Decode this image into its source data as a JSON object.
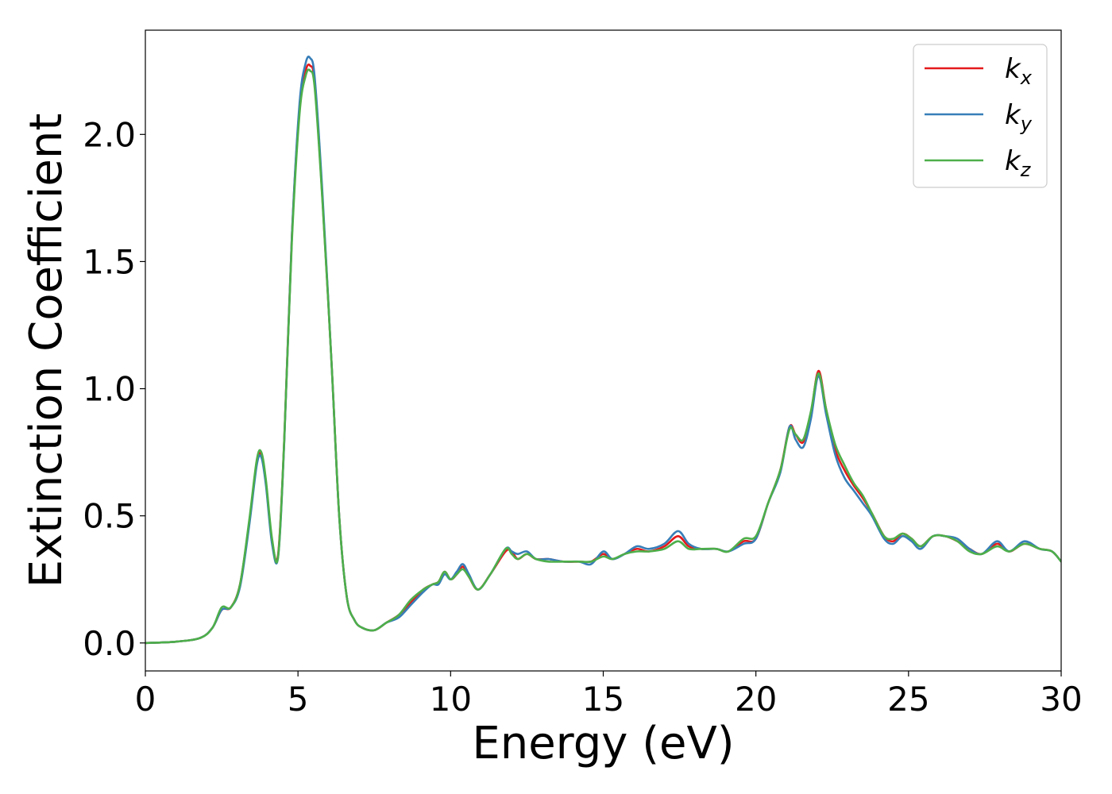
{
  "chart_data": {
    "type": "line",
    "title": "",
    "xlabel": "Energy (eV)",
    "ylabel": "Extinction Coefficient",
    "xlim": [
      0,
      30
    ],
    "ylim": [
      -0.11,
      2.41
    ],
    "xticks": [
      0,
      5,
      10,
      15,
      20,
      25,
      30
    ],
    "xtick_labels": [
      "0",
      "5",
      "10",
      "15",
      "20",
      "25",
      "30"
    ],
    "yticks": [
      0.0,
      0.5,
      1.0,
      1.5,
      2.0
    ],
    "ytick_labels": [
      "0.0",
      "0.5",
      "1.0",
      "1.5",
      "2.0"
    ],
    "grid": false,
    "legend_position": "top-right",
    "series": [
      {
        "name": "k_x",
        "legend_base": "k",
        "legend_sub": "x",
        "color": "#e41a1c",
        "x": [
          0,
          1,
          1.8,
          2.2,
          2.5,
          2.8,
          3.1,
          3.4,
          3.65,
          3.8,
          3.95,
          4.15,
          4.35,
          4.55,
          4.8,
          5.05,
          5.25,
          5.4,
          5.55,
          5.8,
          6.1,
          6.35,
          6.6,
          6.85,
          7.1,
          7.5,
          7.9,
          8.3,
          8.7,
          9.1,
          9.4,
          9.6,
          9.8,
          10.0,
          10.2,
          10.4,
          10.6,
          10.9,
          11.3,
          11.8,
          12.0,
          12.2,
          12.5,
          12.8,
          13.2,
          13.7,
          14.2,
          14.6,
          15.0,
          15.3,
          15.7,
          16.1,
          16.5,
          17.0,
          17.45,
          17.8,
          18.2,
          18.7,
          19.1,
          19.6,
          20.0,
          20.4,
          20.8,
          21.1,
          21.3,
          21.55,
          21.8,
          22.05,
          22.3,
          22.6,
          22.9,
          23.2,
          23.5,
          23.8,
          24.2,
          24.5,
          24.8,
          25.1,
          25.4,
          25.8,
          26.2,
          26.6,
          27.0,
          27.4,
          27.9,
          28.3,
          28.8,
          29.3,
          29.7,
          30.0
        ],
        "y": [
          0.0,
          0.005,
          0.02,
          0.06,
          0.13,
          0.14,
          0.23,
          0.47,
          0.71,
          0.74,
          0.63,
          0.4,
          0.35,
          0.8,
          1.6,
          2.1,
          2.25,
          2.27,
          2.2,
          1.75,
          1.1,
          0.5,
          0.18,
          0.09,
          0.06,
          0.05,
          0.08,
          0.11,
          0.16,
          0.21,
          0.23,
          0.24,
          0.28,
          0.25,
          0.27,
          0.3,
          0.26,
          0.21,
          0.27,
          0.36,
          0.36,
          0.33,
          0.35,
          0.33,
          0.33,
          0.32,
          0.32,
          0.32,
          0.35,
          0.33,
          0.35,
          0.37,
          0.36,
          0.38,
          0.42,
          0.38,
          0.37,
          0.37,
          0.36,
          0.4,
          0.41,
          0.55,
          0.68,
          0.85,
          0.82,
          0.79,
          0.9,
          1.07,
          0.92,
          0.76,
          0.68,
          0.62,
          0.57,
          0.51,
          0.42,
          0.4,
          0.43,
          0.41,
          0.38,
          0.42,
          0.42,
          0.4,
          0.37,
          0.35,
          0.39,
          0.36,
          0.39,
          0.37,
          0.36,
          0.32
        ]
      },
      {
        "name": "k_y",
        "legend_base": "k",
        "legend_sub": "y",
        "color": "#377eb8",
        "x": [
          0,
          1,
          1.8,
          2.2,
          2.5,
          2.8,
          3.1,
          3.4,
          3.65,
          3.8,
          3.95,
          4.15,
          4.35,
          4.55,
          4.8,
          5.05,
          5.25,
          5.4,
          5.55,
          5.8,
          6.1,
          6.35,
          6.6,
          6.85,
          7.1,
          7.5,
          7.9,
          8.3,
          8.7,
          9.1,
          9.4,
          9.6,
          9.8,
          10.0,
          10.2,
          10.4,
          10.6,
          10.9,
          11.3,
          11.8,
          12.0,
          12.2,
          12.5,
          12.8,
          13.2,
          13.7,
          14.2,
          14.6,
          15.0,
          15.3,
          15.7,
          16.1,
          16.5,
          17.0,
          17.45,
          17.8,
          18.2,
          18.7,
          19.1,
          19.6,
          20.0,
          20.4,
          20.8,
          21.1,
          21.3,
          21.55,
          21.8,
          22.05,
          22.3,
          22.6,
          22.9,
          23.2,
          23.5,
          23.8,
          24.2,
          24.5,
          24.8,
          25.1,
          25.4,
          25.8,
          26.2,
          26.6,
          27.0,
          27.4,
          27.9,
          28.3,
          28.8,
          29.3,
          29.7,
          30.0
        ],
        "y": [
          0.0,
          0.005,
          0.02,
          0.06,
          0.13,
          0.14,
          0.22,
          0.46,
          0.7,
          0.73,
          0.62,
          0.39,
          0.34,
          0.79,
          1.6,
          2.12,
          2.28,
          2.3,
          2.22,
          1.77,
          1.1,
          0.5,
          0.18,
          0.09,
          0.06,
          0.05,
          0.08,
          0.1,
          0.15,
          0.2,
          0.23,
          0.23,
          0.27,
          0.25,
          0.28,
          0.31,
          0.27,
          0.21,
          0.27,
          0.37,
          0.36,
          0.35,
          0.36,
          0.33,
          0.33,
          0.32,
          0.32,
          0.31,
          0.36,
          0.33,
          0.35,
          0.38,
          0.37,
          0.39,
          0.44,
          0.39,
          0.37,
          0.37,
          0.36,
          0.39,
          0.41,
          0.55,
          0.67,
          0.85,
          0.8,
          0.77,
          0.88,
          1.05,
          0.9,
          0.74,
          0.65,
          0.6,
          0.55,
          0.5,
          0.41,
          0.39,
          0.42,
          0.4,
          0.37,
          0.42,
          0.42,
          0.41,
          0.37,
          0.35,
          0.4,
          0.36,
          0.4,
          0.37,
          0.36,
          0.32
        ]
      },
      {
        "name": "k_z",
        "legend_base": "k",
        "legend_sub": "z",
        "color": "#4daf4a",
        "x": [
          0,
          1,
          1.8,
          2.2,
          2.5,
          2.8,
          3.1,
          3.4,
          3.65,
          3.8,
          3.95,
          4.15,
          4.35,
          4.55,
          4.8,
          5.05,
          5.25,
          5.4,
          5.55,
          5.8,
          6.1,
          6.35,
          6.6,
          6.85,
          7.1,
          7.5,
          7.9,
          8.3,
          8.7,
          9.1,
          9.4,
          9.6,
          9.8,
          10.0,
          10.2,
          10.4,
          10.6,
          10.9,
          11.3,
          11.8,
          12.0,
          12.2,
          12.5,
          12.8,
          13.2,
          13.7,
          14.2,
          14.6,
          15.0,
          15.3,
          15.7,
          16.1,
          16.5,
          17.0,
          17.45,
          17.8,
          18.2,
          18.7,
          19.1,
          19.6,
          20.0,
          20.4,
          20.8,
          21.1,
          21.3,
          21.55,
          21.8,
          22.05,
          22.3,
          22.6,
          22.9,
          23.2,
          23.5,
          23.8,
          24.2,
          24.5,
          24.8,
          25.1,
          25.4,
          25.8,
          26.2,
          26.6,
          27.0,
          27.4,
          27.9,
          28.3,
          28.8,
          29.3,
          29.7,
          30.0
        ],
        "y": [
          0.0,
          0.005,
          0.02,
          0.06,
          0.14,
          0.14,
          0.23,
          0.48,
          0.72,
          0.75,
          0.64,
          0.41,
          0.34,
          0.8,
          1.58,
          2.08,
          2.23,
          2.25,
          2.18,
          1.74,
          1.1,
          0.5,
          0.18,
          0.09,
          0.06,
          0.05,
          0.08,
          0.11,
          0.17,
          0.21,
          0.23,
          0.24,
          0.28,
          0.25,
          0.27,
          0.29,
          0.26,
          0.21,
          0.27,
          0.37,
          0.35,
          0.33,
          0.35,
          0.33,
          0.32,
          0.32,
          0.32,
          0.32,
          0.34,
          0.33,
          0.35,
          0.36,
          0.36,
          0.37,
          0.4,
          0.37,
          0.37,
          0.37,
          0.36,
          0.41,
          0.42,
          0.55,
          0.68,
          0.84,
          0.82,
          0.8,
          0.91,
          1.06,
          0.92,
          0.78,
          0.7,
          0.63,
          0.58,
          0.51,
          0.42,
          0.41,
          0.43,
          0.41,
          0.38,
          0.42,
          0.42,
          0.4,
          0.36,
          0.35,
          0.38,
          0.36,
          0.39,
          0.37,
          0.36,
          0.32
        ]
      }
    ]
  }
}
